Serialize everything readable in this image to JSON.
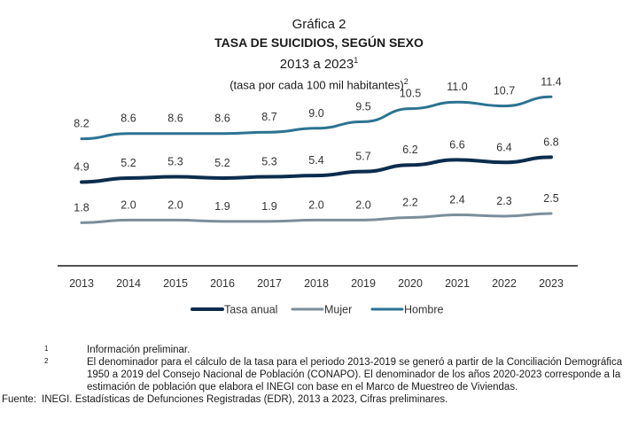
{
  "header": {
    "kicker": "Gráfica 2",
    "title": "TASA DE SUICIDIOS, SEGÚN SEXO",
    "years": "2013 a 2023",
    "years_sup": "1",
    "unit": "(tasa por cada 100 mil habitantes)",
    "unit_sup": "2"
  },
  "chart_data": {
    "type": "line",
    "title": "TASA DE SUICIDIOS, SEGÚN SEXO",
    "xlabel": "",
    "ylabel": "",
    "ylim": [
      0,
      13
    ],
    "grid": false,
    "legend_position": "bottom",
    "categories": [
      "2013",
      "2014",
      "2015",
      "2016",
      "2017",
      "2018",
      "2019",
      "2020",
      "2021",
      "2022",
      "2023"
    ],
    "series": [
      {
        "name": "Hombre",
        "color": "#2b7391",
        "values": [
          8.2,
          8.6,
          8.6,
          8.6,
          8.7,
          9.0,
          9.5,
          10.5,
          11.0,
          10.7,
          11.4
        ],
        "labels": [
          "8.2",
          "8.6",
          "8.6",
          "8.6",
          "8.7",
          "9.0",
          "9.5",
          "10.5",
          "11.0",
          "10.7",
          "11.4"
        ]
      },
      {
        "name": "Tasa anual",
        "color": "#0c2d4c",
        "values": [
          4.9,
          5.2,
          5.3,
          5.2,
          5.3,
          5.4,
          5.7,
          6.2,
          6.6,
          6.4,
          6.8
        ],
        "labels": [
          "4.9",
          "5.2",
          "5.3",
          "5.2",
          "5.3",
          "5.4",
          "5.7",
          "6.2",
          "6.6",
          "6.4",
          "6.8"
        ]
      },
      {
        "name": "Mujer",
        "color": "#7c8e9a",
        "values": [
          1.8,
          2.0,
          2.0,
          1.9,
          1.9,
          2.0,
          2.0,
          2.2,
          2.4,
          2.3,
          2.5
        ],
        "labels": [
          "1.8",
          "2.0",
          "2.0",
          "1.9",
          "1.9",
          "2.0",
          "2.0",
          "2.2",
          "2.4",
          "2.3",
          "2.5"
        ]
      }
    ],
    "legend_order": [
      "Tasa anual",
      "Mujer",
      "Hombre"
    ]
  },
  "footnotes": [
    {
      "mark": "1",
      "text": "Información preliminar."
    },
    {
      "mark": "2",
      "text": "El denominador para el cálculo de la tasa para el periodo 2013-2019 se generó a partir de la Conciliación Demográfica 1950 a 2019 del Consejo Nacional de Población (CONAPO). El denominador de los años 2020-2023 corresponde a la estimación de población que elabora el INEGI con base en el Marco de Muestreo de Viviendas."
    }
  ],
  "source": {
    "label": "Fuente:",
    "text": "INEGI. Estadísticas de Defunciones Registradas (EDR), 2013 a 2023, Cifras preliminares."
  }
}
